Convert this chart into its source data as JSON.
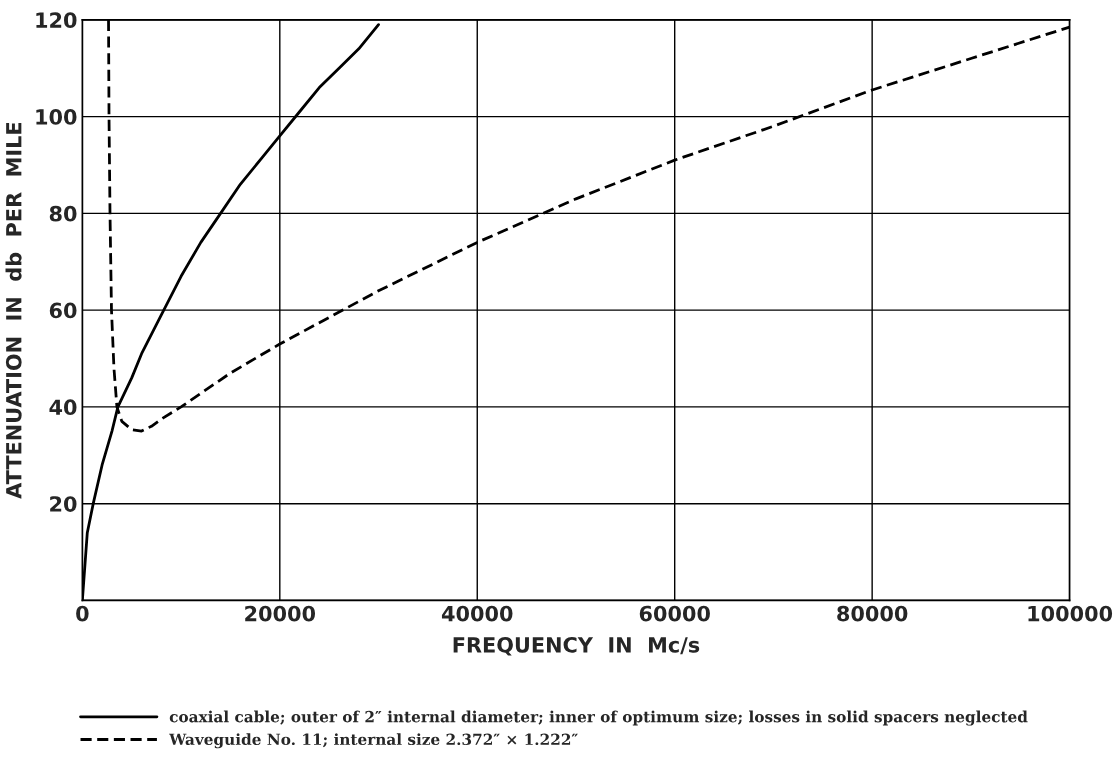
{
  "chart_data": {
    "type": "line",
    "xlabel": "FREQUENCY  IN  Mc/s",
    "ylabel": "ATTENUATION  IN  db  PER  MILE",
    "xlim": [
      0,
      100000
    ],
    "ylim": [
      0,
      120
    ],
    "xticks": [
      0,
      20000,
      40000,
      60000,
      80000,
      100000
    ],
    "yticks": [
      {
        "value": 0,
        "label": null
      },
      20,
      40,
      60,
      80,
      100,
      120
    ],
    "grid": true,
    "legend": "bottom",
    "marker": "none",
    "series": [
      {
        "name": "coaxial cable; outer of 2″ internal diameter; inner of optimum size; losses in solid spacers neglected",
        "color": "#000000",
        "line_style": "solid",
        "x": [
          0,
          500,
          1100,
          2000,
          3000,
          3600,
          5000,
          6000,
          8000,
          10000,
          12000,
          14000,
          16000,
          18000,
          20000,
          22000,
          24000,
          26000,
          28000,
          30000
        ],
        "values": [
          0,
          14,
          20,
          28,
          35,
          40,
          46,
          51,
          59,
          67,
          74,
          80,
          86,
          91,
          96,
          101,
          106,
          110,
          114,
          119
        ]
      },
      {
        "name": "Waveguide No. 11; internal size 2.372″ × 1.222″",
        "color": "#000000",
        "line_style": "dashed",
        "x": [
          2650,
          2700,
          2800,
          2950,
          3200,
          3500,
          4000,
          5000,
          6000,
          7000,
          8000,
          10000,
          15000,
          20000,
          30000,
          40000,
          50000,
          60000,
          70000,
          80000,
          90000,
          100000
        ],
        "values": [
          120,
          100,
          80,
          60,
          48,
          40,
          37,
          35.3,
          35,
          36,
          37.5,
          40,
          47,
          53,
          64,
          74,
          83,
          91,
          98,
          105.5,
          112,
          118.5
        ]
      }
    ]
  }
}
